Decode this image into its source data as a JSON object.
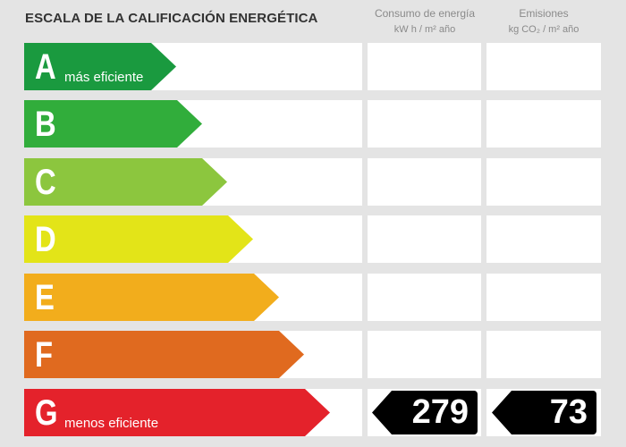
{
  "title": "ESCALA DE LA CALIFICACIÓN ENERGÉTICA",
  "columns": {
    "consumo": {
      "label": "Consumo de energía",
      "unit": "kW h / m² año"
    },
    "emisiones": {
      "label": "Emisiones",
      "unit": "kg CO₂ / m² año"
    }
  },
  "ratings": [
    {
      "letter": "A",
      "description": "más eficiente",
      "color": "#1a9a3f"
    },
    {
      "letter": "B",
      "description": "",
      "color": "#31ad3b"
    },
    {
      "letter": "C",
      "description": "",
      "color": "#8cc63e"
    },
    {
      "letter": "D",
      "description": "",
      "color": "#e3e418"
    },
    {
      "letter": "E",
      "description": "",
      "color": "#f2ad1c"
    },
    {
      "letter": "F",
      "description": "",
      "color": "#e06a1f"
    },
    {
      "letter": "G",
      "description": "menos eficiente",
      "color": "#e4222b"
    }
  ],
  "current_rating": "G",
  "values": {
    "consumo": "279",
    "emisiones": "73"
  }
}
